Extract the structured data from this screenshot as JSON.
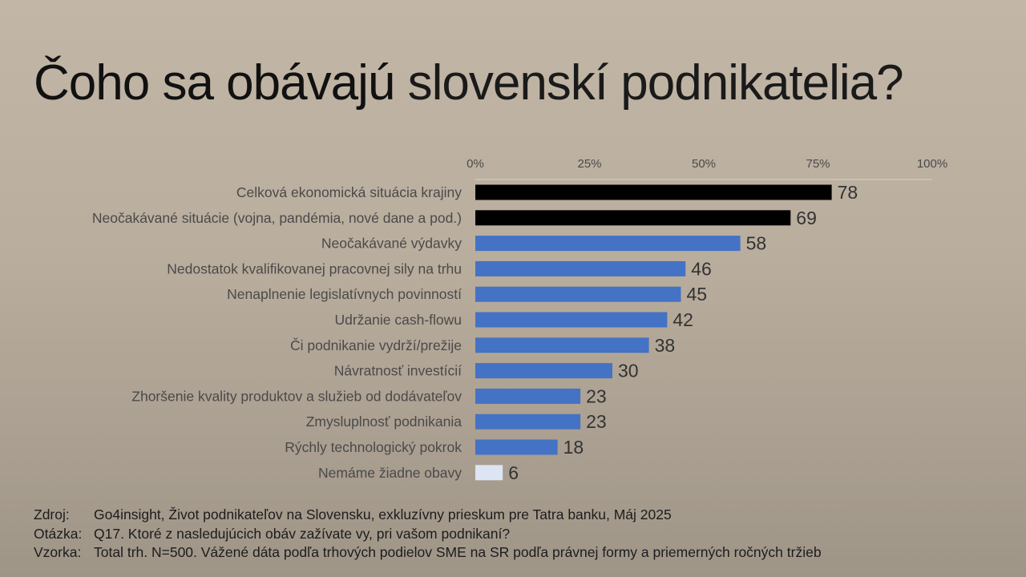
{
  "title": {
    "part1": "Čoho sa obávajú",
    "part2": "slovenskí podnikatelia?"
  },
  "colors": {
    "highlight": "#000000",
    "primary": "#4472c4",
    "muted": "#dde4f4",
    "axis_text": "#4a4a4a",
    "label_text": "#4a4a4a",
    "value_text": "#333333"
  },
  "chart_data": {
    "type": "bar",
    "orientation": "horizontal",
    "x_ticks": [
      "0%",
      "25%",
      "50%",
      "75%",
      "100%"
    ],
    "xlim": [
      0,
      100
    ],
    "categories": [
      "Celková ekonomická situácia krajiny",
      "Neočakávané situácie (vojna, pandémia, nové dane a pod.)",
      "Neočakávané výdavky",
      "Nedostatok kvalifikovanej pracovnej sily na trhu",
      "Nenaplnenie legislatívnych povinností",
      "Udržanie cash-flowu",
      "Či podnikanie vydrží/prežije",
      "Návratnosť investícií",
      "Zhoršenie kvality produktov a služieb od dodávateľov",
      "Zmysluplnosť podnikania",
      "Rýchly technologický pokrok",
      "Nemáme žiadne obavy"
    ],
    "values": [
      78,
      69,
      58,
      46,
      45,
      42,
      38,
      30,
      23,
      23,
      18,
      6
    ],
    "value_labels": [
      "78",
      "69",
      "58",
      "46",
      "45",
      "42",
      "38",
      "30",
      "23",
      "23",
      "18",
      "6"
    ],
    "bar_colors": [
      "highlight",
      "highlight",
      "primary",
      "primary",
      "primary",
      "primary",
      "primary",
      "primary",
      "primary",
      "primary",
      "primary",
      "muted"
    ],
    "axis_position": "top",
    "grid": false,
    "legend": "none"
  },
  "footer": {
    "source_label": "Zdroj:",
    "source_text": "Go4insight, Život podnikateľov na Slovensku, exkluzívny prieskum pre Tatra banku, Máj 2025",
    "question_label": "Otázka:",
    "question_text": "Q17. Ktoré z nasledujúcich obáv zažívate vy, pri vašom podnikaní?",
    "sample_label": "Vzorka:",
    "sample_text": "Total trh. N=500. Vážené dáta podľa trhových podielov SME na SR podľa právnej formy a priemerných ročných tržieb"
  }
}
